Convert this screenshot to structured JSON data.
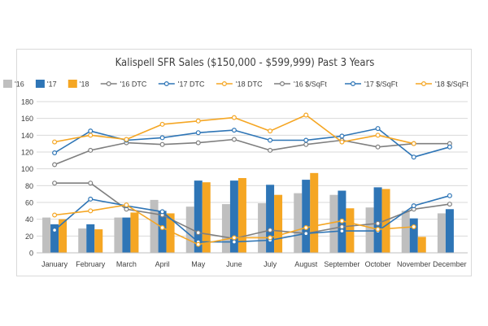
{
  "chart_data": {
    "type": "bar",
    "title": "Kalispell SFR Sales ($150,000 - $599,999) Past 3 Years",
    "categories": [
      "January",
      "February",
      "March",
      "April",
      "May",
      "June",
      "July",
      "August",
      "September",
      "October",
      "November",
      "December"
    ],
    "ylim": [
      0,
      180
    ],
    "yticks": [
      0,
      20,
      40,
      60,
      80,
      100,
      120,
      140,
      160,
      180
    ],
    "grid": true,
    "legend_position": "top",
    "bar_series": [
      {
        "name": "'16",
        "color": "#bfbfbf",
        "values": [
          42,
          29,
          42,
          63,
          55,
          58,
          59,
          71,
          69,
          54,
          50,
          47
        ]
      },
      {
        "name": "'17",
        "color": "#2e75b6",
        "values": [
          34,
          34,
          42,
          50,
          86,
          86,
          81,
          87,
          74,
          78,
          41,
          52
        ]
      },
      {
        "name": "'18",
        "color": "#f5a623",
        "values": [
          40,
          28,
          48,
          47,
          84,
          89,
          69,
          95,
          53,
          76,
          19,
          null
        ]
      }
    ],
    "line_series": [
      {
        "name": "'16 DTC",
        "color": "#7f7f7f",
        "values": [
          83,
          83,
          52,
          45,
          24,
          17,
          27,
          23,
          31,
          35,
          52,
          58
        ]
      },
      {
        "name": "'17 DTC",
        "color": "#2e75b6",
        "values": [
          27,
          64,
          56,
          49,
          13,
          13,
          15,
          23,
          26,
          26,
          56,
          68
        ]
      },
      {
        "name": "'18 DTC",
        "color": "#f5a623",
        "values": [
          45,
          50,
          57,
          30,
          10,
          18,
          18,
          30,
          38,
          28,
          31,
          null
        ]
      },
      {
        "name": "'16 $/SqFt",
        "color": "#7f7f7f",
        "values": [
          105,
          122,
          131,
          129,
          131,
          135,
          122,
          129,
          134,
          126,
          130,
          130
        ]
      },
      {
        "name": "'17 $/SqFt",
        "color": "#2e75b6",
        "values": [
          119,
          145,
          134,
          137,
          143,
          146,
          134,
          134,
          139,
          148,
          114,
          126
        ]
      },
      {
        "name": "'18 $/SqFt",
        "color": "#f5a623",
        "values": [
          132,
          140,
          135,
          153,
          157,
          161,
          145,
          164,
          132,
          140,
          130,
          null
        ]
      }
    ]
  }
}
